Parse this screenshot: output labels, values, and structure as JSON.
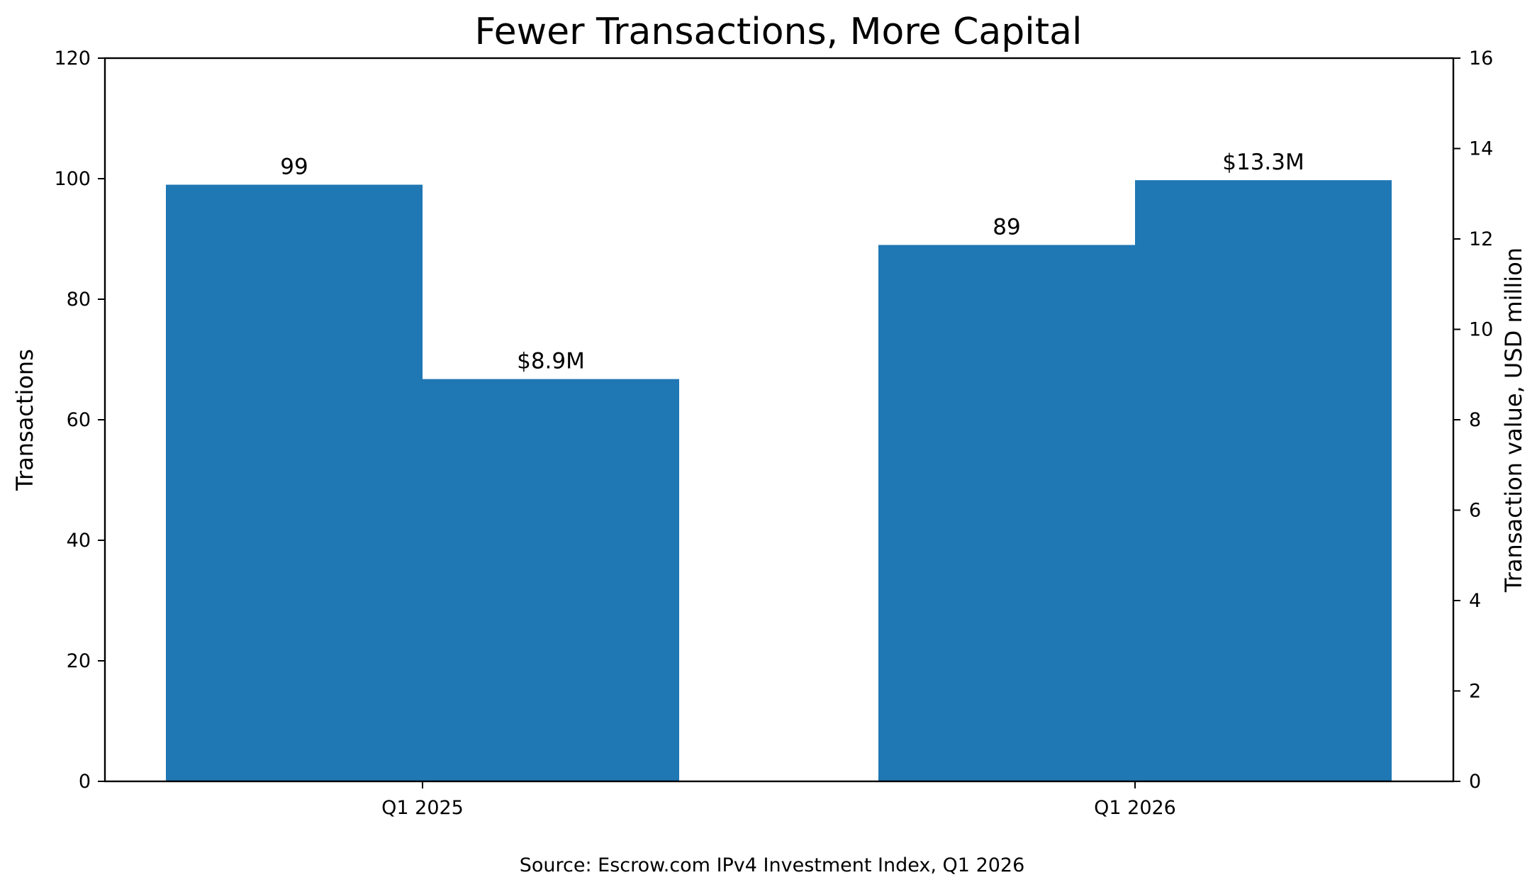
{
  "chart_data": {
    "type": "bar",
    "title": "Fewer Transactions, More Capital",
    "categories": [
      "Q1 2025",
      "Q1 2026"
    ],
    "series": [
      {
        "axis": "left",
        "values": [
          99,
          89
        ],
        "labels": [
          "99",
          "89"
        ]
      },
      {
        "axis": "right",
        "values": [
          8.9,
          13.3
        ],
        "labels": [
          "$8.9M",
          "$13.3M"
        ]
      }
    ],
    "ylabel": "Transactions",
    "ylim": [
      0,
      120
    ],
    "yticks": [
      "0",
      "20",
      "40",
      "60",
      "80",
      "100",
      "120"
    ],
    "y2label": "Transaction value, USD million",
    "y2lim": [
      0,
      16
    ],
    "y2ticks": [
      "0",
      "2",
      "4",
      "6",
      "8",
      "10",
      "12",
      "14",
      "16"
    ],
    "bar_color": "#1f77b4",
    "grid": false,
    "legend": "none"
  },
  "footer": {
    "source": "Source: Escrow.com IPv4 Investment Index, Q1 2026"
  }
}
